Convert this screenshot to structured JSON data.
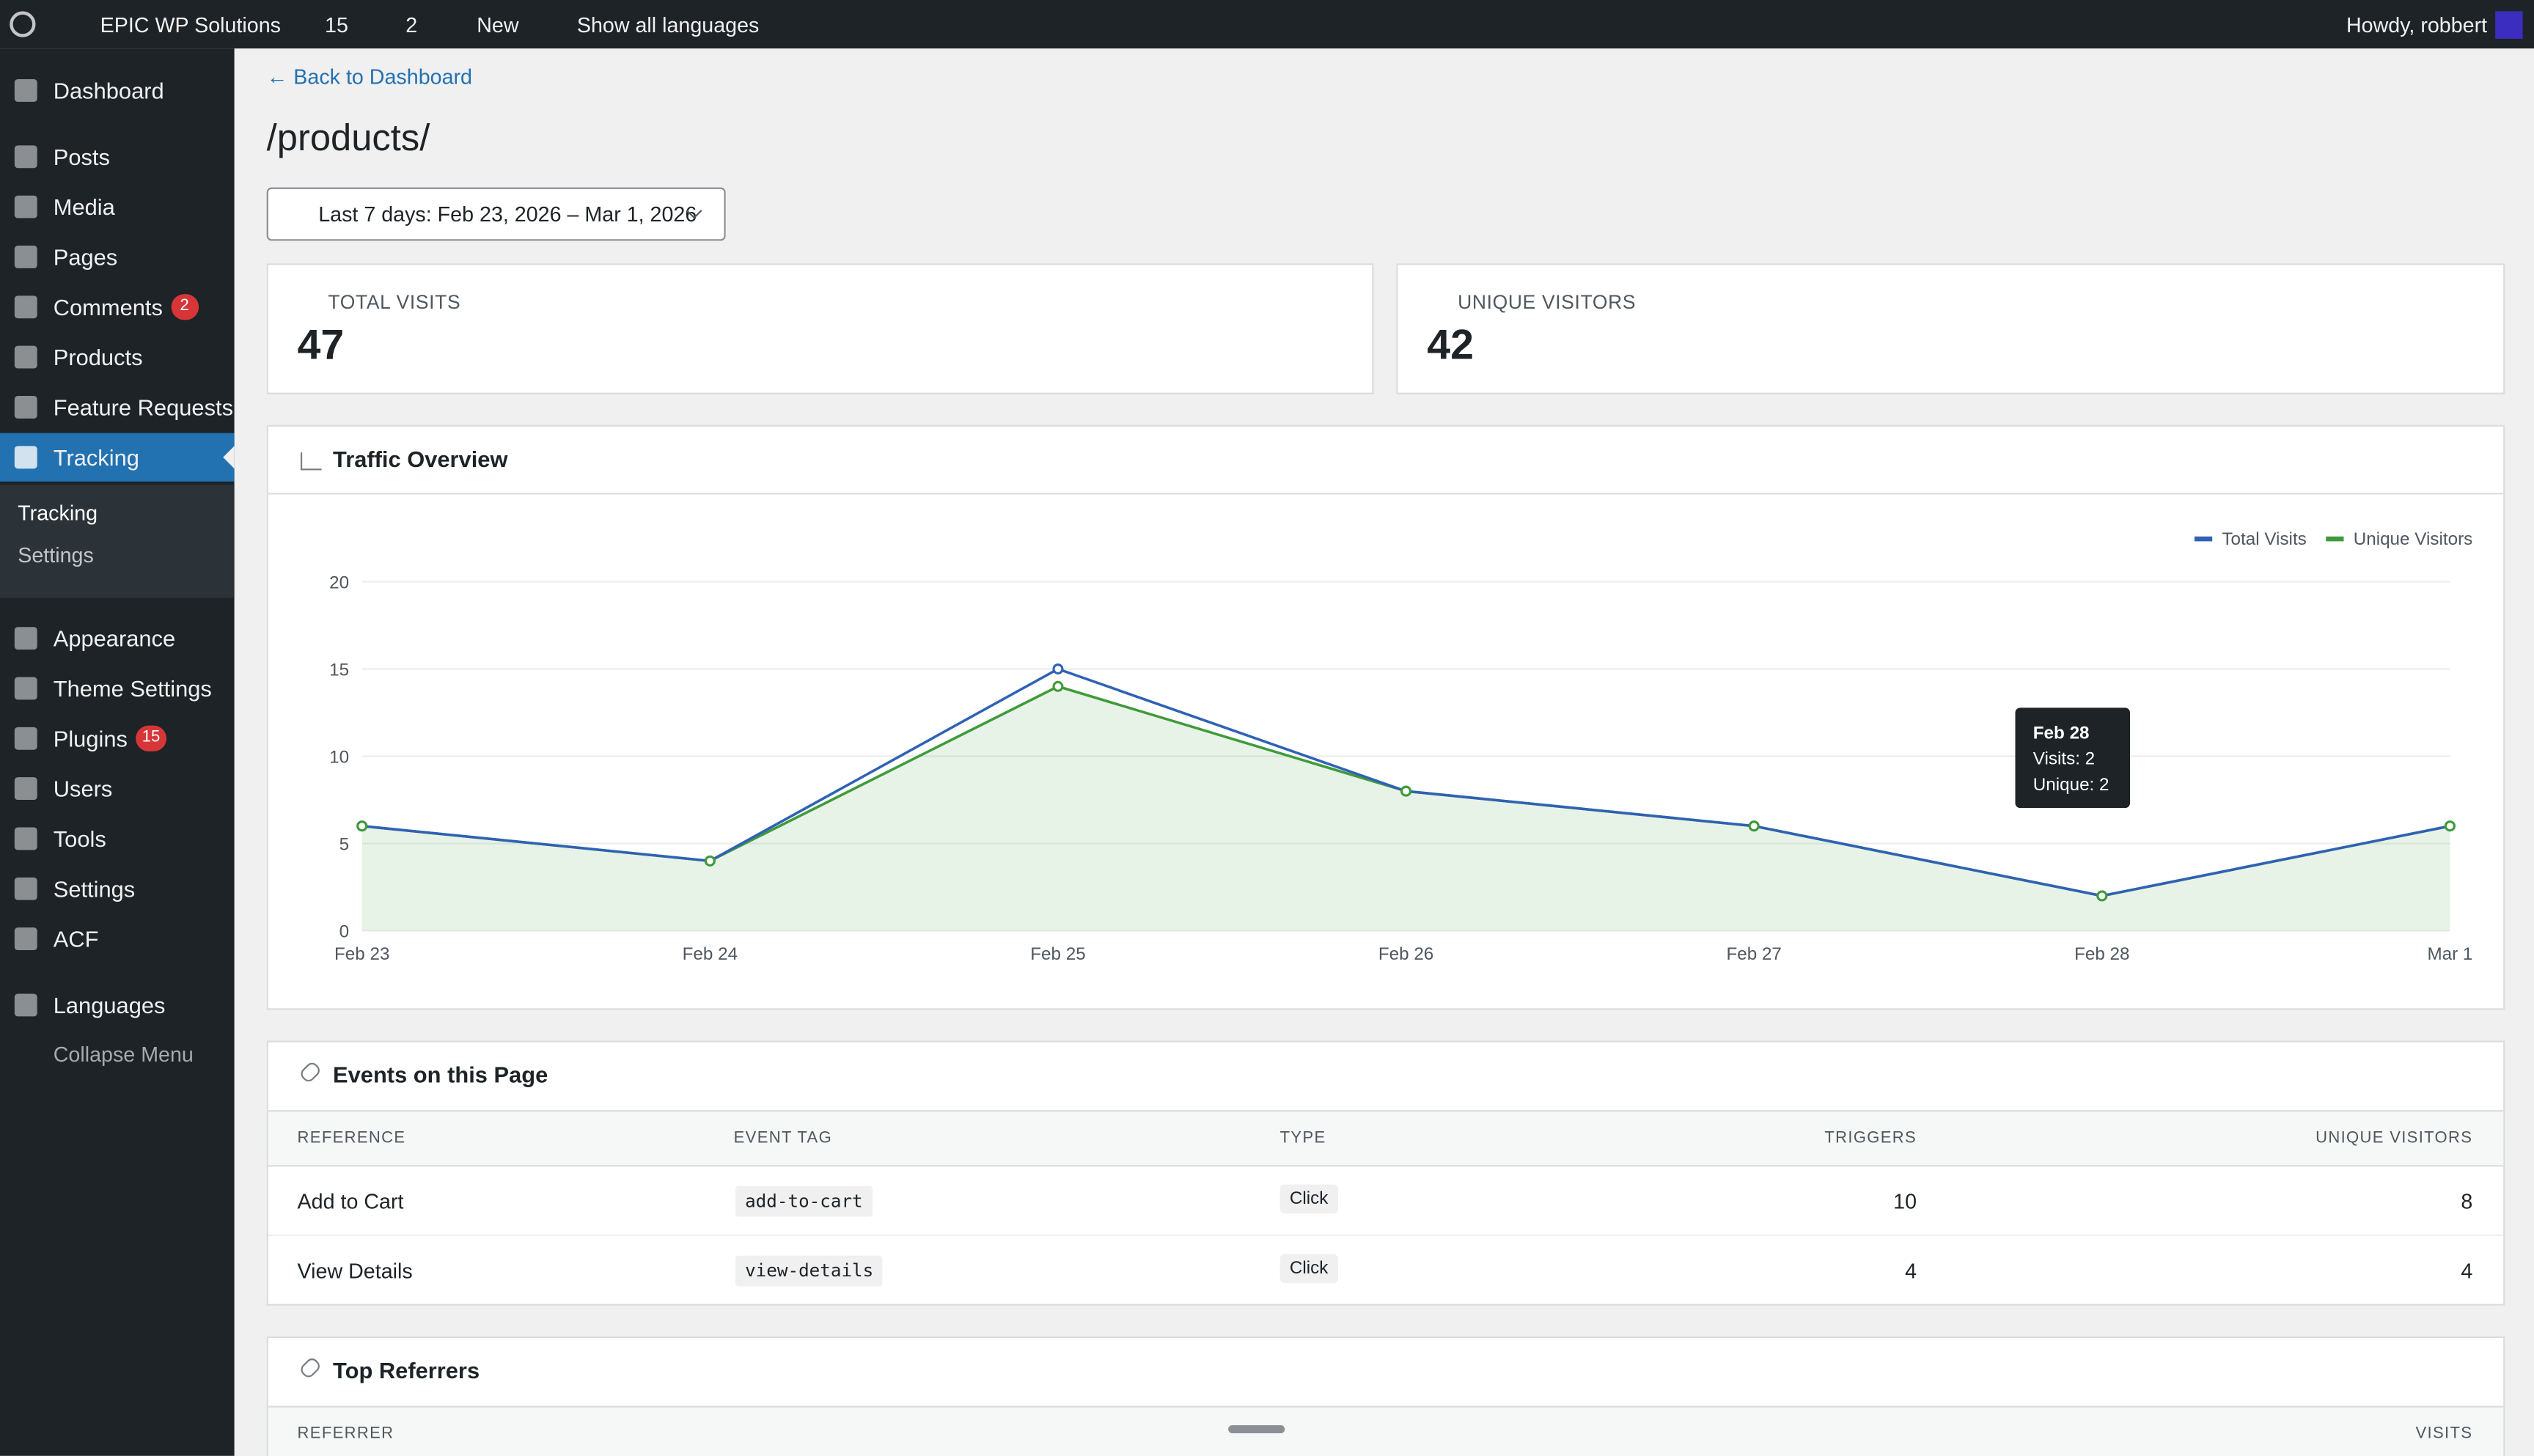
{
  "admin_bar": {
    "site": "EPIC WP Solutions",
    "updates": "15",
    "comments": "2",
    "new": "New",
    "languages": "Show all languages",
    "greeting": "Howdy, robbert"
  },
  "sidebar": {
    "items": [
      {
        "label": "Dashboard"
      },
      {
        "label": "Posts"
      },
      {
        "label": "Media"
      },
      {
        "label": "Pages"
      },
      {
        "label": "Comments",
        "badge": "2"
      },
      {
        "label": "Products"
      },
      {
        "label": "Feature Requests"
      },
      {
        "label": "Tracking"
      },
      {
        "label": "Appearance"
      },
      {
        "label": "Theme Settings"
      },
      {
        "label": "Plugins",
        "badge": "15"
      },
      {
        "label": "Users"
      },
      {
        "label": "Tools"
      },
      {
        "label": "Settings"
      },
      {
        "label": "ACF"
      },
      {
        "label": "Languages"
      }
    ],
    "submenu": [
      "Tracking",
      "Settings"
    ],
    "collapse": "Collapse Menu"
  },
  "page": {
    "back_link": "← Back to Dashboard",
    "title": "/products/",
    "date_range": "Last 7 days: Feb 23, 2026 – Mar 1, 2026",
    "stats": [
      {
        "label": "TOTAL VISITS",
        "value": 47
      },
      {
        "label": "UNIQUE VISITORS",
        "value": 42
      }
    ]
  },
  "chart_data": {
    "type": "line",
    "title": "Traffic Overview",
    "categories": [
      "Feb 23",
      "Feb 24",
      "Feb 25",
      "Feb 26",
      "Feb 27",
      "Feb 28",
      "Mar 1"
    ],
    "series": [
      {
        "name": "Total Visits",
        "color": "#2f62b5",
        "values": [
          6,
          4,
          15,
          8,
          6,
          2,
          6
        ]
      },
      {
        "name": "Unique Visitors",
        "color": "#3f9b3a",
        "values": [
          6,
          4,
          14,
          8,
          6,
          2,
          6
        ],
        "fill": true
      }
    ],
    "ylim": [
      0,
      20
    ],
    "yticks": [
      0,
      5,
      10,
      15,
      20
    ],
    "grid": true,
    "legend": "top-right"
  },
  "tooltip": {
    "title": "Feb 28",
    "lines": [
      "Visits: 2",
      "Unique: 2"
    ]
  },
  "events": {
    "title": "Events on this Page",
    "columns": [
      "REFERENCE",
      "EVENT TAG",
      "TYPE",
      "TRIGGERS",
      "UNIQUE VISITORS"
    ],
    "rows": [
      [
        "Add to Cart",
        "add-to-cart",
        "Click",
        10,
        8
      ],
      [
        "View Details",
        "view-details",
        "Click",
        4,
        4
      ]
    ]
  },
  "referrers": {
    "title": "Top Referrers",
    "columns": [
      "REFERRER",
      "VISITS"
    ]
  }
}
